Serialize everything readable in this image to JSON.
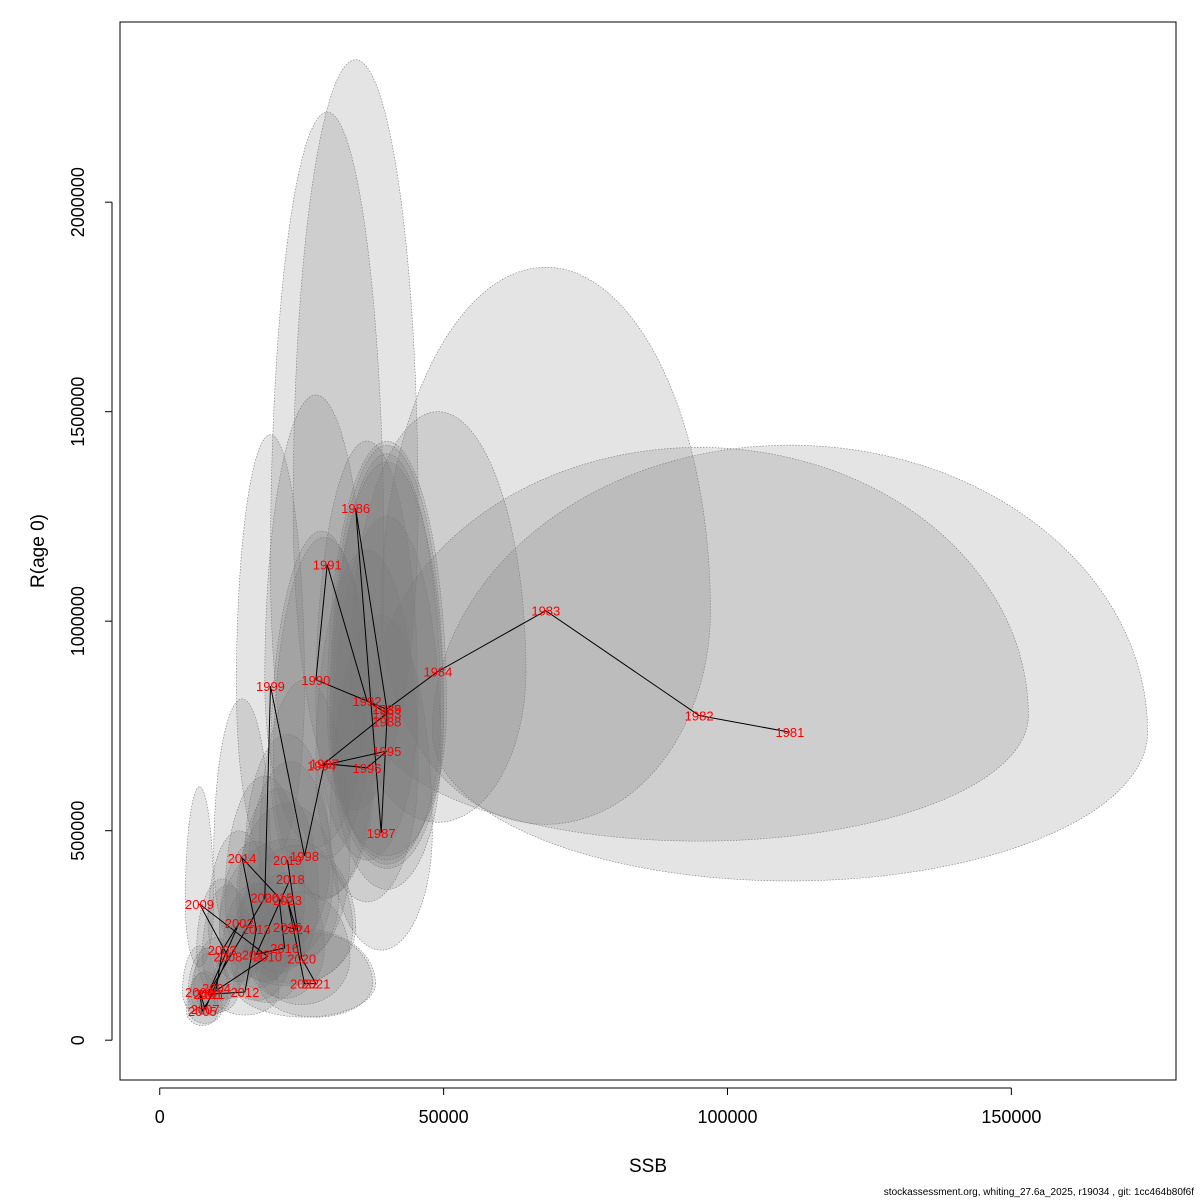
{
  "chart_data": {
    "type": "scatter",
    "title": "",
    "xlabel": "SSB",
    "ylabel": "R(age 0)",
    "xlim": [
      -7000,
      179000
    ],
    "ylim": [
      -95000,
      2430000
    ],
    "x_ticks": [
      0,
      50000,
      100000,
      150000
    ],
    "y_ticks": [
      0,
      500000,
      1000000,
      1500000,
      2000000
    ],
    "x_tick_labels": [
      "0",
      "50000",
      "100000",
      "150000"
    ],
    "y_tick_labels": [
      "0",
      "500000",
      "1000000",
      "1500000",
      "2000000"
    ],
    "grid": false,
    "colors": {
      "label": "#ff0000",
      "ellipse_fill": "rgba(120,120,120,0.2)",
      "ellipse_stroke": "#7a7a7a",
      "path": "#000000"
    },
    "series": [
      {
        "points": [
          {
            "year": "1981",
            "x": 111000,
            "y": 735000,
            "rx": 63000,
            "ryUp": 685000,
            "ryDown": 355000
          },
          {
            "year": "1982",
            "x": 95000,
            "y": 775000,
            "rx": 58000,
            "ryUp": 640000,
            "ryDown": 300000
          },
          {
            "year": "1983",
            "x": 68000,
            "y": 1025000,
            "rx": 29000,
            "ryUp": 820000,
            "ryDown": 510000
          },
          {
            "year": "1984",
            "x": 49000,
            "y": 880000,
            "rx": 15500,
            "ryUp": 620000,
            "ryDown": 360000
          },
          {
            "year": "1985",
            "x": 40000,
            "y": 790000,
            "rx": 10500,
            "ryUp": 640000,
            "ryDown": 350000
          },
          {
            "year": "1986",
            "x": 34500,
            "y": 1270000,
            "rx": 11000,
            "ryUp": 1070000,
            "ryDown": 720000
          },
          {
            "year": "1987",
            "x": 39000,
            "y": 495000,
            "rx": 9000,
            "ryUp": 520000,
            "ryDown": 280000
          },
          {
            "year": "1988",
            "x": 40000,
            "y": 760000,
            "rx": 10000,
            "ryUp": 620000,
            "ryDown": 350000
          },
          {
            "year": "1989",
            "x": 40000,
            "y": 790000,
            "rx": 10000,
            "ryUp": 630000,
            "ryDown": 360000
          },
          {
            "year": "1990",
            "x": 27500,
            "y": 860000,
            "rx": 9000,
            "ryUp": 680000,
            "ryDown": 400000
          },
          {
            "year": "1991",
            "x": 29500,
            "y": 1135000,
            "rx": 10000,
            "ryUp": 1080000,
            "ryDown": 700000
          },
          {
            "year": "1992",
            "x": 36500,
            "y": 810000,
            "rx": 9000,
            "ryUp": 620000,
            "ryDown": 380000
          },
          {
            "year": "1993",
            "x": 40000,
            "y": 780000,
            "rx": 9500,
            "ryUp": 620000,
            "ryDown": 360000
          },
          {
            "year": "1994",
            "x": 28500,
            "y": 655000,
            "rx": 9000,
            "ryUp": 560000,
            "ryDown": 320000
          },
          {
            "year": "1995",
            "x": 40000,
            "y": 690000,
            "rx": 9500,
            "ryUp": 560000,
            "ryDown": 330000
          },
          {
            "year": "1996",
            "x": 36500,
            "y": 650000,
            "rx": 9000,
            "ryUp": 520000,
            "ryDown": 320000
          },
          {
            "year": "1997",
            "x": 29000,
            "y": 660000,
            "rx": 9000,
            "ryUp": 540000,
            "ryDown": 320000
          },
          {
            "year": "1998",
            "x": 25500,
            "y": 440000,
            "rx": 8000,
            "ryUp": 420000,
            "ryDown": 240000
          },
          {
            "year": "1999",
            "x": 19500,
            "y": 845000,
            "rx": 6000,
            "ryUp": 600000,
            "ryDown": 420000
          },
          {
            "year": "2000",
            "x": 18500,
            "y": 340000,
            "rx": 7000,
            "ryUp": 290000,
            "ryDown": 200000
          },
          {
            "year": "2001",
            "x": 8500,
            "y": 110000,
            "rx": 3500,
            "ryUp": 110000,
            "ryDown": 50000
          },
          {
            "year": "2002",
            "x": 14000,
            "y": 280000,
            "rx": 5500,
            "ryUp": 220000,
            "ryDown": 140000
          },
          {
            "year": "2003",
            "x": 11000,
            "y": 215000,
            "rx": 4500,
            "ryUp": 170000,
            "ryDown": 120000
          },
          {
            "year": "2004",
            "x": 10000,
            "y": 125000,
            "rx": 4000,
            "ryUp": 120000,
            "ryDown": 60000
          },
          {
            "year": "2005",
            "x": 7500,
            "y": 70000,
            "rx": 2800,
            "ryUp": 90000,
            "ryDown": 35000
          },
          {
            "year": "2006",
            "x": 7000,
            "y": 115000,
            "rx": 3000,
            "ryUp": 110000,
            "ryDown": 55000
          },
          {
            "year": "2007",
            "x": 8000,
            "y": 75000,
            "rx": 3000,
            "ryUp": 90000,
            "ryDown": 35000
          },
          {
            "year": "2008",
            "x": 12000,
            "y": 200000,
            "rx": 4500,
            "ryUp": 170000,
            "ryDown": 100000
          },
          {
            "year": "2009",
            "x": 7000,
            "y": 325000,
            "rx": 2500,
            "ryUp": 280000,
            "ryDown": 150000
          },
          {
            "year": "2010",
            "x": 19000,
            "y": 200000,
            "rx": 6500,
            "ryUp": 180000,
            "ryDown": 110000
          },
          {
            "year": "2011",
            "x": 9000,
            "y": 110000,
            "rx": 3500,
            "ryUp": 100000,
            "ryDown": 50000
          },
          {
            "year": "2012",
            "x": 15000,
            "y": 115000,
            "rx": 6000,
            "ryUp": 110000,
            "ryDown": 55000
          },
          {
            "year": "2013",
            "x": 17000,
            "y": 265000,
            "rx": 6500,
            "ryUp": 210000,
            "ryDown": 140000
          },
          {
            "year": "2014",
            "x": 14500,
            "y": 435000,
            "rx": 5000,
            "ryUp": 380000,
            "ryDown": 230000
          },
          {
            "year": "2015",
            "x": 21000,
            "y": 340000,
            "rx": 7000,
            "ryUp": 260000,
            "ryDown": 180000
          },
          {
            "year": "2016",
            "x": 22000,
            "y": 220000,
            "rx": 7000,
            "ryUp": 180000,
            "ryDown": 120000
          },
          {
            "year": "2017",
            "x": 17000,
            "y": 205000,
            "rx": 6000,
            "ryUp": 170000,
            "ryDown": 110000
          },
          {
            "year": "2018",
            "x": 23000,
            "y": 385000,
            "rx": 7500,
            "ryUp": 280000,
            "ryDown": 190000
          },
          {
            "year": "2019",
            "x": 22500,
            "y": 430000,
            "rx": 7500,
            "ryUp": 300000,
            "ryDown": 210000
          },
          {
            "year": "2020",
            "x": 25000,
            "y": 195000,
            "rx": 8500,
            "ryUp": 160000,
            "ryDown": 110000
          },
          {
            "year": "2021",
            "x": 27500,
            "y": 135000,
            "rx": 10000,
            "ryUp": 120000,
            "ryDown": 80000
          },
          {
            "year": "2022",
            "x": 25500,
            "y": 135000,
            "rx": 12500,
            "ryUp": 130000,
            "ryDown": 80000
          },
          {
            "year": "2023",
            "x": 22500,
            "y": 335000,
            "rx": 9000,
            "ryUp": 230000,
            "ryDown": 160000
          },
          {
            "year": "2024",
            "x": 24000,
            "y": 265000,
            "rx": 10000,
            "ryUp": 200000,
            "ryDown": 130000
          },
          {
            "year": "2025",
            "x": 22500,
            "y": 270000,
            "rx": 12000,
            "ryUp": 210000,
            "ryDown": 140000
          }
        ]
      }
    ]
  },
  "footer": "stockassessment.org, whiting_27.6a_2025, r19034 , git: 1cc464b80f6f"
}
